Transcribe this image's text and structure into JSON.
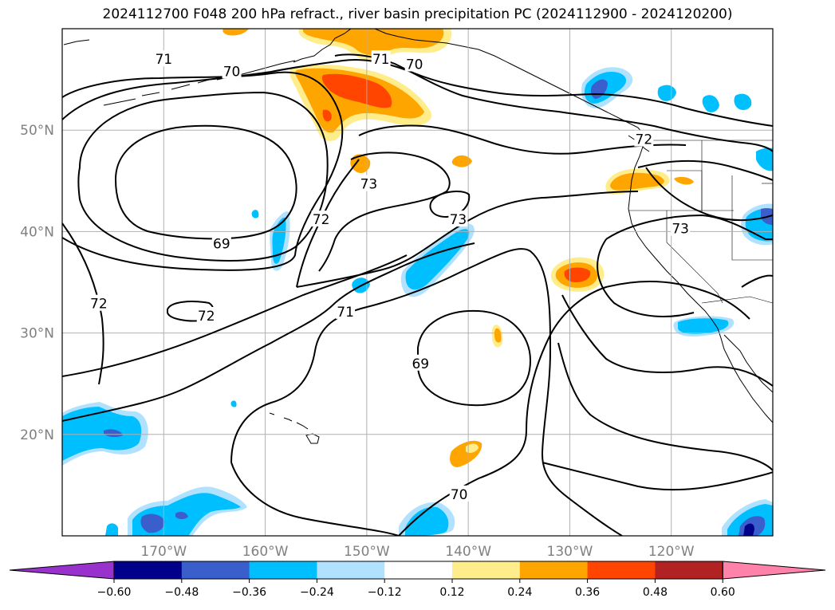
{
  "title": "2024112700 F048 200 hPa refract., river basin precipitation PC (2024112900 - 2024120200)",
  "map": {
    "lon_range": [
      -180,
      -110
    ],
    "lat_range": [
      10,
      60
    ],
    "lat_ticks": [
      {
        "value": 20,
        "label": "20°N"
      },
      {
        "value": 30,
        "label": "30°N"
      },
      {
        "value": 40,
        "label": "40°N"
      },
      {
        "value": 50,
        "label": "50°N"
      }
    ],
    "lon_ticks": [
      {
        "value": -170,
        "label": "170°W"
      },
      {
        "value": -160,
        "label": "160°W"
      },
      {
        "value": -150,
        "label": "150°W"
      },
      {
        "value": -140,
        "label": "140°W"
      },
      {
        "value": -130,
        "label": "130°W"
      },
      {
        "value": -120,
        "label": "120°W"
      }
    ],
    "gridlines": true
  },
  "contour_labels": [
    {
      "text": "71",
      "lon": -170.0,
      "lat": 57.0
    },
    {
      "text": "70",
      "lon": -163.3,
      "lat": 55.8
    },
    {
      "text": "71",
      "lon": -148.6,
      "lat": 57.0
    },
    {
      "text": "70",
      "lon": -145.3,
      "lat": 56.5
    },
    {
      "text": "72",
      "lon": -122.7,
      "lat": 49.1
    },
    {
      "text": "73",
      "lon": -149.8,
      "lat": 44.7
    },
    {
      "text": "73",
      "lon": -141.0,
      "lat": 41.2
    },
    {
      "text": "73",
      "lon": -119.1,
      "lat": 40.3
    },
    {
      "text": "72",
      "lon": -154.5,
      "lat": 41.2
    },
    {
      "text": "69",
      "lon": -164.3,
      "lat": 38.8
    },
    {
      "text": "72",
      "lon": -176.4,
      "lat": 32.9
    },
    {
      "text": "72",
      "lon": -165.8,
      "lat": 31.7
    },
    {
      "text": "71",
      "lon": -152.1,
      "lat": 32.1
    },
    {
      "text": "69",
      "lon": -144.7,
      "lat": 27.0
    },
    {
      "text": "70",
      "lon": -140.9,
      "lat": 14.1
    }
  ],
  "colorbar": {
    "colors": [
      "#9932cc",
      "#00008b",
      "#3a5fcd",
      "#00bfff",
      "#b0e2ff",
      "#ffffff",
      "#ffec8b",
      "#ffa500",
      "#ff4500",
      "#b22222",
      "#ff82ab"
    ],
    "tick_labels": [
      "−0.60",
      "−0.48",
      "−0.36",
      "−0.24",
      "−0.12",
      "0.12",
      "0.24",
      "0.36",
      "0.48",
      "0.60"
    ]
  }
}
